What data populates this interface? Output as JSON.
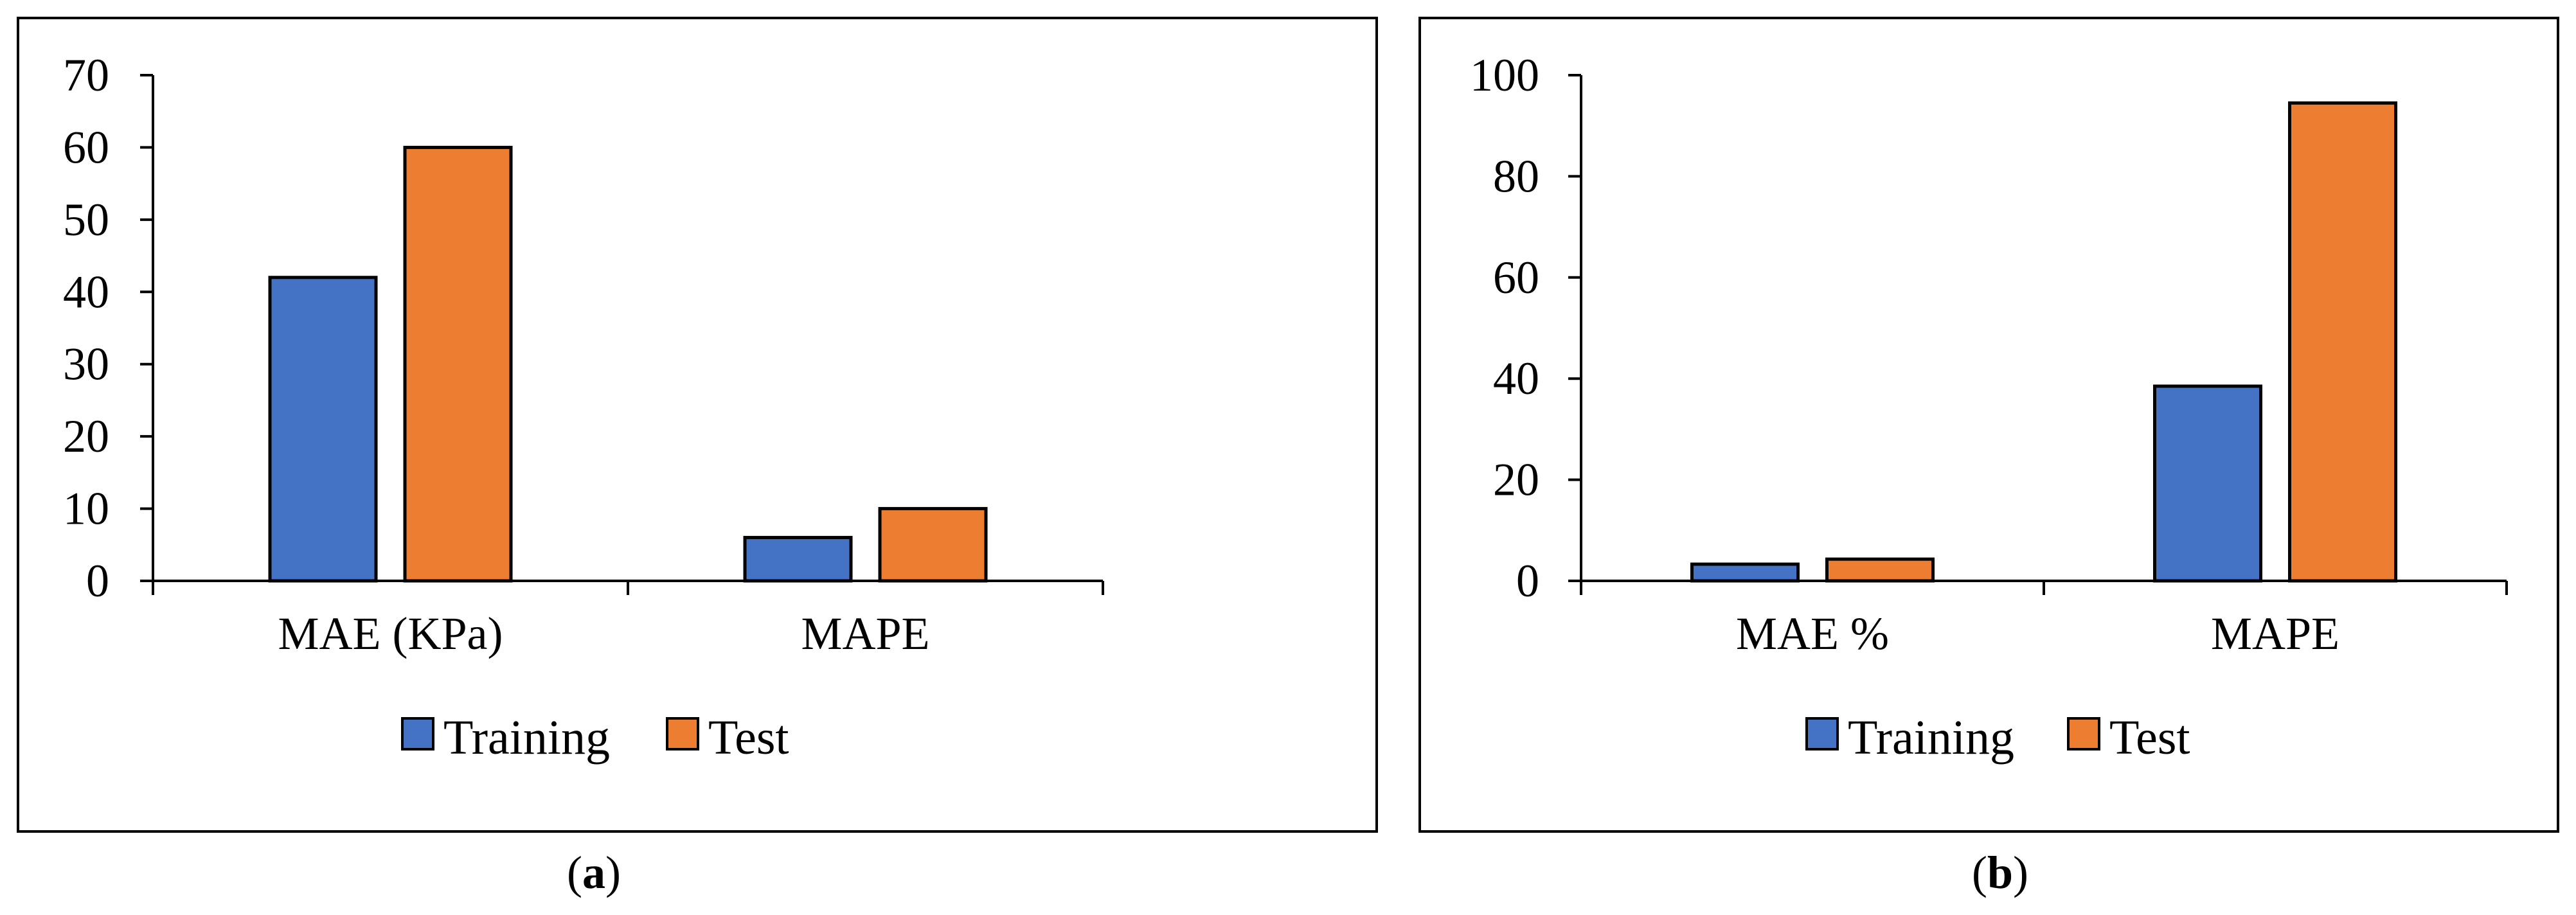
{
  "colors": {
    "training": "#4472C4",
    "test": "#ED7D31",
    "axis": "#000000",
    "frame": "#000000"
  },
  "chart_data": [
    {
      "type": "bar",
      "panel_label": "a",
      "categories": [
        "MAE (KPa)",
        "MAPE"
      ],
      "series": [
        {
          "name": "Training",
          "values": [
            42,
            6
          ]
        },
        {
          "name": "Test",
          "values": [
            60,
            10
          ]
        }
      ],
      "ylim": [
        0,
        70
      ],
      "yticks": [
        0,
        10,
        20,
        30,
        40,
        50,
        60,
        70
      ],
      "grid": false,
      "legend_position": "bottom"
    },
    {
      "type": "bar",
      "panel_label": "b",
      "categories": [
        "MAE %",
        "MAPE"
      ],
      "series": [
        {
          "name": "Training",
          "values": [
            3.3,
            38.5
          ]
        },
        {
          "name": "Test",
          "values": [
            4.3,
            94.5
          ]
        }
      ],
      "ylim": [
        0,
        100
      ],
      "yticks": [
        0,
        20,
        40,
        60,
        80,
        100
      ],
      "grid": false,
      "legend_position": "bottom"
    }
  ]
}
